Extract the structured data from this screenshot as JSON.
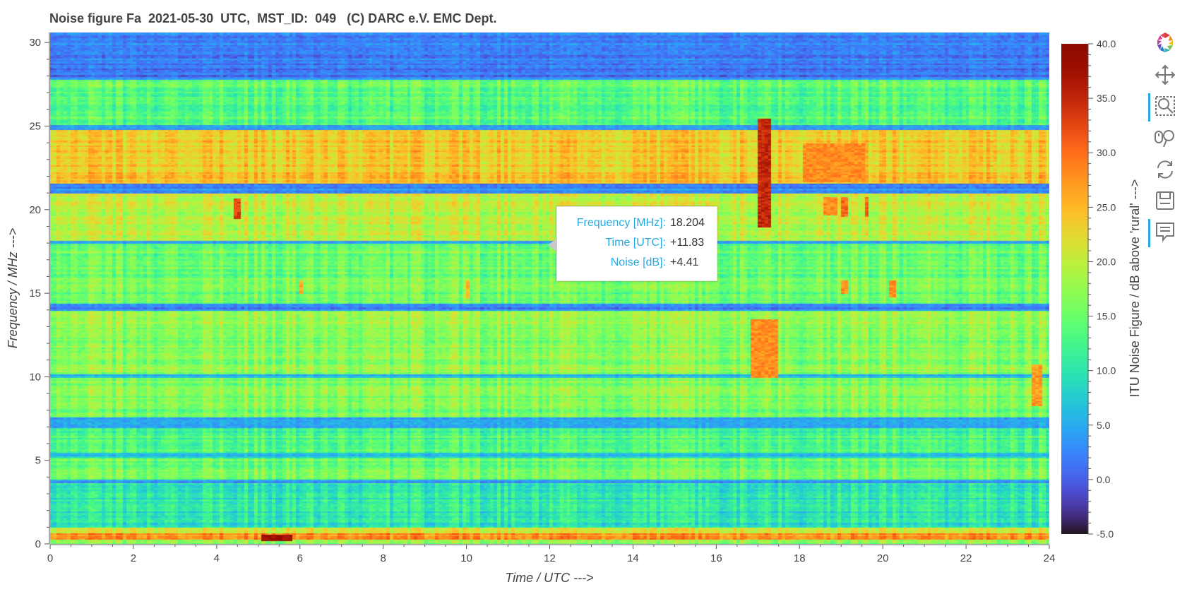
{
  "title": "Noise figure Fa  2021-05-30  UTC,  MST_ID:  049   (C) DARC e.V. EMC Dept.",
  "chart_data": {
    "type": "heatmap",
    "xlabel": "Time / UTC --->",
    "ylabel": "Frequency / MHz --->",
    "xlim": [
      0,
      24
    ],
    "ylim": [
      0,
      30.6
    ],
    "xticks": [
      "0",
      "2",
      "4",
      "6",
      "8",
      "10",
      "12",
      "14",
      "16",
      "18",
      "20",
      "22",
      "24"
    ],
    "yticks": [
      "0",
      "5",
      "10",
      "15",
      "20",
      "25",
      "30"
    ],
    "colorbar": {
      "label": "ITU Noise Figure / dB above 'rural' --->",
      "range": [
        -5,
        40
      ],
      "ticks": [
        "-5.0",
        "0.0",
        "5.0",
        "10.0",
        "15.0",
        "20.0",
        "25.0",
        "30.0",
        "35.0",
        "40.0"
      ],
      "colormap": "turbo"
    },
    "background_level_db": 17,
    "frequency_bands_db": [
      {
        "f": [
          0.0,
          0.3
        ],
        "db": 16
      },
      {
        "f": [
          0.3,
          0.7
        ],
        "db": 27
      },
      {
        "f": [
          0.7,
          1.0
        ],
        "db": 21
      },
      {
        "f": [
          1.0,
          3.7
        ],
        "db": 10
      },
      {
        "f": [
          3.7,
          3.9
        ],
        "db": 4
      },
      {
        "f": [
          3.9,
          5.2
        ],
        "db": 15
      },
      {
        "f": [
          5.2,
          5.5
        ],
        "db": 6
      },
      {
        "f": [
          5.5,
          7.0
        ],
        "db": 13
      },
      {
        "f": [
          7.0,
          7.6
        ],
        "db": 5
      },
      {
        "f": [
          7.6,
          10.0
        ],
        "db": 16
      },
      {
        "f": [
          10.0,
          10.2
        ],
        "db": 5
      },
      {
        "f": [
          10.2,
          14.0
        ],
        "db": 17
      },
      {
        "f": [
          14.0,
          14.4
        ],
        "db": 3
      },
      {
        "f": [
          14.4,
          18.0
        ],
        "db": 15
      },
      {
        "f": [
          18.0,
          18.2
        ],
        "db": 3
      },
      {
        "f": [
          18.2,
          21.0
        ],
        "db": 20
      },
      {
        "f": [
          21.0,
          21.6
        ],
        "db": 3
      },
      {
        "f": [
          21.6,
          24.8
        ],
        "db": 24
      },
      {
        "f": [
          24.8,
          25.1
        ],
        "db": 4
      },
      {
        "f": [
          25.1,
          27.8
        ],
        "db": 14
      },
      {
        "f": [
          27.8,
          30.6
        ],
        "db": 2
      }
    ],
    "hotspots": [
      {
        "t": [
          5.1,
          5.8
        ],
        "f": [
          0.2,
          0.6
        ],
        "db": 38
      },
      {
        "t": [
          17.0,
          17.3
        ],
        "f": [
          19.0,
          25.5
        ],
        "db": 35
      },
      {
        "t": [
          16.8,
          17.5
        ],
        "f": [
          10.0,
          13.5
        ],
        "db": 28
      },
      {
        "t": [
          4.4,
          4.6
        ],
        "f": [
          19.5,
          20.7
        ],
        "db": 33
      },
      {
        "t": [
          18.6,
          18.9
        ],
        "f": [
          19.7,
          20.8
        ],
        "db": 28
      },
      {
        "t": [
          19.0,
          19.2
        ],
        "f": [
          19.6,
          20.8
        ],
        "db": 30
      },
      {
        "t": [
          19.6,
          19.7
        ],
        "f": [
          19.6,
          20.8
        ],
        "db": 30
      },
      {
        "t": [
          18.1,
          19.6
        ],
        "f": [
          21.7,
          24.0
        ],
        "db": 28
      },
      {
        "t": [
          19.0,
          19.2
        ],
        "f": [
          15.0,
          15.8
        ],
        "db": 28
      },
      {
        "t": [
          20.2,
          20.3
        ],
        "f": [
          14.8,
          15.8
        ],
        "db": 28
      },
      {
        "t": [
          6.0,
          6.1
        ],
        "f": [
          15.0,
          15.8
        ],
        "db": 26
      },
      {
        "t": [
          10.0,
          10.1
        ],
        "f": [
          14.7,
          15.8
        ],
        "db": 25
      },
      {
        "t": [
          23.6,
          23.8
        ],
        "f": [
          8.3,
          10.8
        ],
        "db": 27
      }
    ],
    "hover": {
      "frequency_mhz": "18.204",
      "time_utc": "+11.83",
      "noise_db": "+4.41"
    }
  },
  "tooltip": {
    "rows": [
      {
        "key": "Frequency [MHz]:",
        "value": "18.204"
      },
      {
        "key": "Time [UTC]:",
        "value": "+11.83"
      },
      {
        "key": "Noise [dB]:",
        "value": "+4.41"
      }
    ]
  },
  "toolbar": {
    "tools": [
      {
        "name": "bokeh-logo-icon",
        "active": false
      },
      {
        "name": "pan-tool-icon",
        "active": false
      },
      {
        "name": "box-zoom-tool-icon",
        "active": true
      },
      {
        "name": "wheel-zoom-tool-icon",
        "active": false
      },
      {
        "name": "reset-tool-icon",
        "active": false
      },
      {
        "name": "save-tool-icon",
        "active": false
      },
      {
        "name": "hover-tool-icon",
        "active": true
      }
    ]
  }
}
